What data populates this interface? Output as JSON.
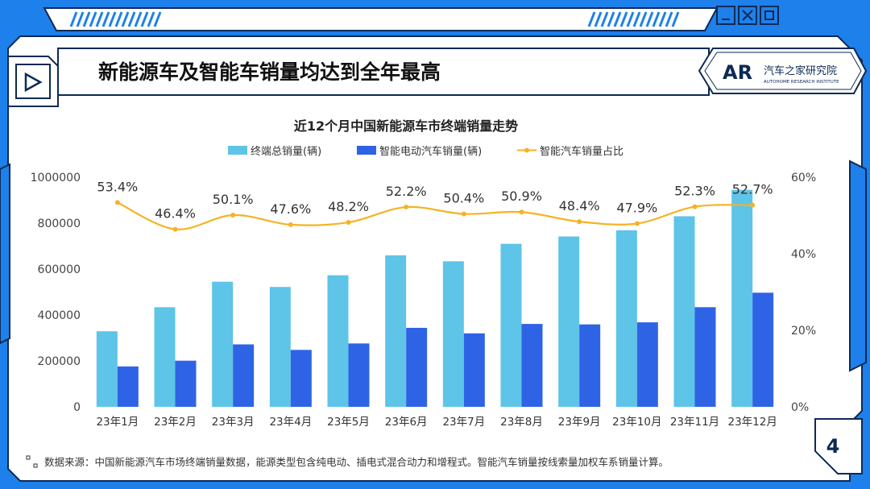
{
  "slide": {
    "title": "新能源车及智能车销量均达到全年最高",
    "brand_name": "汽车之家研究院",
    "brand_sub": "AUTOHOME RESEARCH INSTITUTE",
    "page_number": "4",
    "footnote": "数据来源：中国新能源汽车市场终端销量数据，能源类型包含纯电动、插电式混合动力和增程式。智能汽车销量按线索量加权车系销量计算。"
  },
  "colors": {
    "frame_blue": "#1e80ea",
    "bar_total": "#5ec4e8",
    "bar_smart": "#2f63e6",
    "line_ratio": "#f5b324"
  },
  "chart_data": {
    "type": "bar",
    "title": "近12个月中国新能源车市终端销量走势",
    "categories": [
      "23年1月",
      "23年2月",
      "23年3月",
      "23年4月",
      "23年5月",
      "23年6月",
      "23年7月",
      "23年8月",
      "23年9月",
      "23年10月",
      "23年11月",
      "23年12月"
    ],
    "series": [
      {
        "name": "终端总销量(辆)",
        "type": "bar",
        "axis": "left",
        "values": [
          329000,
          434000,
          545000,
          522000,
          573000,
          660000,
          634000,
          710000,
          742000,
          769000,
          830000,
          945000
        ]
      },
      {
        "name": "智能电动汽车销量(辆)",
        "type": "bar",
        "axis": "left",
        "values": [
          176000,
          201000,
          272000,
          248000,
          276000,
          344000,
          320000,
          361000,
          359000,
          368000,
          434000,
          497000
        ]
      },
      {
        "name": "智能汽车销量占比",
        "type": "line",
        "axis": "right",
        "values": [
          53.4,
          46.4,
          50.1,
          47.6,
          48.2,
          52.2,
          50.4,
          50.9,
          48.4,
          47.9,
          52.3,
          52.7
        ],
        "labels": [
          "53.4%",
          "46.4%",
          "50.1%",
          "47.6%",
          "48.2%",
          "52.2%",
          "50.4%",
          "50.9%",
          "48.4%",
          "47.9%",
          "52.3%",
          "52.7%"
        ]
      }
    ],
    "y_left": {
      "range": [
        0,
        1000000
      ],
      "ticks": [
        "0",
        "200000",
        "400000",
        "600000",
        "800000",
        "1000000"
      ]
    },
    "y_right": {
      "range": [
        0,
        60
      ],
      "ticks": [
        "0%",
        "20%",
        "40%",
        "60%"
      ],
      "unit": "%"
    },
    "legend_position": "top",
    "grid": false
  }
}
